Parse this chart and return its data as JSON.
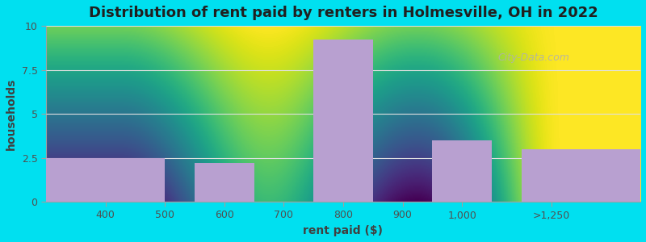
{
  "title": "Distribution of rent paid by renters in Holmesville, OH in 2022",
  "xlabel": "rent paid ($)",
  "ylabel": "households",
  "bar_lefts": [
    300,
    550,
    750,
    950,
    1100
  ],
  "bar_rights": [
    500,
    650,
    850,
    1050,
    1300
  ],
  "bar_heights": [
    2.5,
    2.2,
    9.2,
    3.5,
    3.0
  ],
  "bar_color": "#b8a0d0",
  "xlim": [
    300,
    1300
  ],
  "ylim": [
    0,
    10
  ],
  "yticks": [
    0,
    2.5,
    5.0,
    7.5,
    10
  ],
  "ytick_labels": [
    "0",
    "2.5",
    "5",
    "7.5",
    "10"
  ],
  "xtick_positions": [
    400,
    500,
    600,
    700,
    800,
    900,
    1000,
    1150
  ],
  "xtick_labels": [
    "400",
    "500",
    "600",
    "700",
    "800",
    "900",
    "1,000",
    ">1,250"
  ],
  "bg_gradient_top": "#f5fff5",
  "bg_gradient_bottom": "#d0f0d0",
  "outer_bg": "#00e0f0",
  "watermark_text": "City-Data.com",
  "title_fontsize": 13,
  "axis_label_fontsize": 10,
  "tick_fontsize": 9,
  "grid_color": "#e0e0e0"
}
